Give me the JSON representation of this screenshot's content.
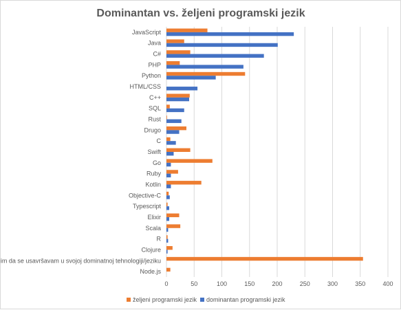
{
  "chart_data": {
    "type": "bar",
    "orientation": "horizontal",
    "title": "Dominantan vs. željeni programski jezik",
    "categories": [
      "JavaScript",
      "Java",
      "C#",
      "PHP",
      "Python",
      "HTML/CSS",
      "C++",
      "SQL",
      "Rust",
      "Drugo",
      "C",
      "Swift",
      "Go",
      "Ruby",
      "Kotlin",
      "Objective-C",
      "Typescript",
      "Elixir",
      "Scala",
      "R",
      "Clojure",
      "Želim da se usavršavam u svojoj dominatnoj tehnologiji/jeziku",
      "Node.js"
    ],
    "series": [
      {
        "name": "željeni programski jezik",
        "color": "#ed7d31",
        "values": [
          74,
          32,
          43,
          24,
          142,
          0,
          42,
          6,
          1,
          36,
          7,
          43,
          83,
          21,
          63,
          4,
          2,
          23,
          25,
          2,
          11,
          355,
          7
        ]
      },
      {
        "name": "dominantan programski jezik",
        "color": "#4472c4",
        "values": [
          230,
          201,
          176,
          139,
          89,
          56,
          41,
          32,
          27,
          23,
          17,
          13,
          8,
          8,
          8,
          6,
          5,
          5,
          3,
          3,
          2,
          0,
          0
        ]
      }
    ],
    "xlim": [
      0,
      400
    ],
    "xticks": [
      0,
      50,
      100,
      150,
      200,
      250,
      300,
      350,
      400
    ],
    "grid": true,
    "legend_position": "bottom"
  }
}
